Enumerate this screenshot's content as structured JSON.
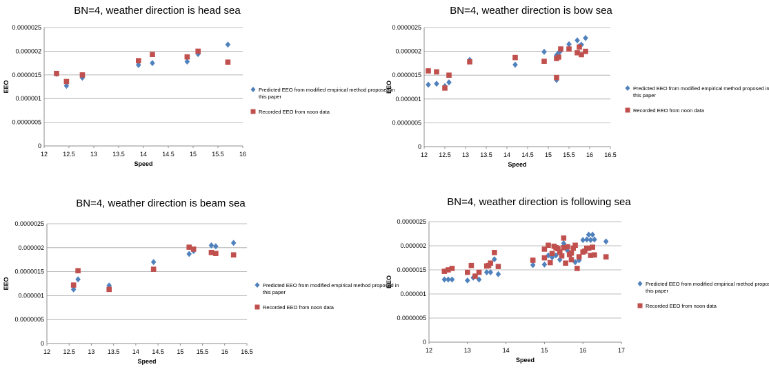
{
  "chart_data": [
    {
      "type": "scatter",
      "title": "BN=4, weather direction is head sea",
      "xlabel": "Speed",
      "ylabel": "EEO",
      "xlim": [
        12,
        16
      ],
      "xticks": [
        "12",
        "12.5",
        "13",
        "13.5",
        "14",
        "14.5",
        "15",
        "15.5",
        "16"
      ],
      "ylim": [
        0,
        2.5e-06
      ],
      "yticks": [
        "0",
        "0.0000005",
        "0.000001",
        "0.0000015",
        "0.000002",
        "0.0000025"
      ],
      "grid": "horizontal",
      "legend_position": "right",
      "series": [
        {
          "name": "Predicted EEO from modified empirical method proposed in this paper",
          "marker": "diamond",
          "color": "#4f81bd",
          "x": [
            12.25,
            12.45,
            12.77,
            13.9,
            14.18,
            14.88,
            15.1,
            15.7
          ],
          "y": [
            1.52e-06,
            1.27e-06,
            1.44e-06,
            1.71e-06,
            1.75e-06,
            1.78e-06,
            1.94e-06,
            2.14e-06
          ]
        },
        {
          "name": "Recorded EEO from noon data",
          "marker": "square",
          "color": "#c0504d",
          "x": [
            12.25,
            12.45,
            12.77,
            13.9,
            14.18,
            14.88,
            15.1,
            15.7
          ],
          "y": [
            1.53e-06,
            1.36e-06,
            1.5e-06,
            1.8e-06,
            1.93e-06,
            1.88e-06,
            2e-06,
            1.77e-06
          ]
        }
      ]
    },
    {
      "type": "scatter",
      "title": "BN=4, weather direction is bow sea",
      "xlabel": "Speed",
      "ylabel": "EEO",
      "xlim": [
        12,
        16.5
      ],
      "xticks": [
        "12",
        "12.5",
        "13",
        "13.5",
        "14",
        "14.5",
        "15",
        "15.5",
        "16",
        "16.5"
      ],
      "ylim": [
        0,
        2.5e-06
      ],
      "yticks": [
        "0",
        "0.0000005",
        "0.000001",
        "0.0000015",
        "0.000002",
        "0.0000025"
      ],
      "grid": "horizontal",
      "legend_position": "right",
      "series": [
        {
          "name": "Predicted EEO from modified empirical method proposed in this paper",
          "marker": "diamond",
          "color": "#4f81bd",
          "x": [
            12.1,
            12.3,
            12.5,
            12.6,
            13.1,
            14.2,
            14.9,
            15.2,
            15.2,
            15.25,
            15.3,
            15.5,
            15.7,
            15.75,
            15.8,
            15.9
          ],
          "y": [
            1.3e-06,
            1.32e-06,
            1.27e-06,
            1.35e-06,
            1.82e-06,
            1.72e-06,
            1.99e-06,
            1.4e-06,
            1.92e-06,
            1.97e-06,
            2.01e-06,
            2.15e-06,
            2.23e-06,
            2.11e-06,
            2.14e-06,
            2.28e-06
          ]
        },
        {
          "name": "Recorded EEO from noon data",
          "marker": "square",
          "color": "#c0504d",
          "x": [
            12.1,
            12.3,
            12.5,
            12.6,
            13.1,
            14.2,
            14.9,
            15.2,
            15.2,
            15.25,
            15.3,
            15.5,
            15.7,
            15.75,
            15.8,
            15.9
          ],
          "y": [
            1.59e-06,
            1.57e-06,
            1.23e-06,
            1.5e-06,
            1.78e-06,
            1.87e-06,
            1.79e-06,
            1.45e-06,
            1.85e-06,
            1.88e-06,
            2.05e-06,
            2.05e-06,
            1.97e-06,
            2.09e-06,
            1.93e-06,
            2e-06
          ]
        }
      ]
    },
    {
      "type": "scatter",
      "title": "BN=4, weather direction is beam sea",
      "xlabel": "Speed",
      "ylabel": "EEO",
      "xlim": [
        12,
        16.5
      ],
      "xticks": [
        "12",
        "12.5",
        "13",
        "13.5",
        "14",
        "14.5",
        "15",
        "15.5",
        "16",
        "16.5"
      ],
      "ylim": [
        0,
        2.5e-06
      ],
      "yticks": [
        "0",
        "0.0000005",
        "0.000001",
        "0.0000015",
        "0.000002",
        "0.0000025"
      ],
      "grid": "horizontal",
      "legend_position": "right",
      "series": [
        {
          "name": "Predicted EEO from modified empirical method proposed in this paper",
          "marker": "diamond",
          "color": "#4f81bd",
          "x": [
            12.6,
            12.7,
            13.4,
            14.4,
            15.2,
            15.3,
            15.7,
            15.8,
            16.2
          ],
          "y": [
            1.13e-06,
            1.34e-06,
            1.21e-06,
            1.7e-06,
            1.87e-06,
            1.93e-06,
            2.05e-06,
            2.03e-06,
            2.1e-06
          ]
        },
        {
          "name": "Recorded EEO from noon data",
          "marker": "square",
          "color": "#c0504d",
          "x": [
            12.6,
            12.7,
            13.4,
            14.4,
            15.2,
            15.3,
            15.7,
            15.8,
            16.2
          ],
          "y": [
            1.22e-06,
            1.52e-06,
            1.13e-06,
            1.55e-06,
            2.01e-06,
            1.97e-06,
            1.9e-06,
            1.88e-06,
            1.85e-06
          ]
        }
      ]
    },
    {
      "type": "scatter",
      "title": "BN=4, weather direction is following sea",
      "xlabel": "Speed",
      "ylabel": "EEO",
      "xlim": [
        12,
        17
      ],
      "xticks": [
        "12",
        "13",
        "14",
        "15",
        "16",
        "17"
      ],
      "ylim": [
        0,
        2.5e-06
      ],
      "yticks": [
        "0",
        "0.0000005",
        "0.000001",
        "0.0000015",
        "0.000002",
        "0.0000025"
      ],
      "grid": "horizontal",
      "legend_position": "right",
      "series": [
        {
          "name": "Predicted EEO from modified empirical method proposed in this paper",
          "marker": "diamond",
          "color": "#4f81bd",
          "x": [
            12.4,
            12.5,
            12.6,
            13.0,
            13.15,
            13.3,
            13.5,
            13.6,
            13.7,
            13.8,
            14.7,
            15.0,
            15.1,
            15.2,
            15.3,
            15.4,
            15.5,
            15.6,
            15.7,
            15.8,
            15.9,
            16.0,
            16.05,
            16.1,
            16.15,
            16.2,
            16.25,
            16.3,
            16.6
          ],
          "y": [
            1.3e-06,
            1.3e-06,
            1.3e-06,
            1.28e-06,
            1.34e-06,
            1.3e-06,
            1.45e-06,
            1.45e-06,
            1.72e-06,
            1.41e-06,
            1.6e-06,
            1.61e-06,
            1.8e-06,
            1.76e-06,
            1.8e-06,
            1.71e-06,
            2.05e-06,
            1.9e-06,
            1.83e-06,
            1.66e-06,
            1.7e-06,
            2.12e-06,
            1.9e-06,
            2.13e-06,
            2.23e-06,
            2.12e-06,
            2.23e-06,
            2.13e-06,
            2.09e-06
          ]
        },
        {
          "name": "Recorded EEO from noon data",
          "marker": "square",
          "color": "#c0504d",
          "x": [
            12.4,
            12.5,
            12.6,
            13.0,
            13.1,
            13.2,
            13.3,
            13.5,
            13.55,
            13.6,
            13.7,
            13.8,
            14.7,
            15.0,
            15.0,
            15.1,
            15.15,
            15.2,
            15.25,
            15.3,
            15.35,
            15.4,
            15.45,
            15.5,
            15.5,
            15.55,
            15.6,
            15.65,
            15.7,
            15.7,
            15.75,
            15.8,
            15.85,
            15.9,
            16.0,
            16.05,
            16.1,
            16.15,
            16.2,
            16.25,
            16.3,
            16.6
          ],
          "y": [
            1.47e-06,
            1.5e-06,
            1.53e-06,
            1.45e-06,
            1.59e-06,
            1.37e-06,
            1.45e-06,
            1.58e-06,
            1.59e-06,
            1.64e-06,
            1.86e-06,
            1.57e-06,
            1.7e-06,
            1.93e-06,
            1.75e-06,
            2.01e-06,
            1.65e-06,
            1.84e-06,
            1.99e-06,
            1.96e-06,
            1.94e-06,
            1.87e-06,
            1.79e-06,
            2.16e-06,
            1.96e-06,
            1.64e-06,
            1.98e-06,
            1.82e-06,
            1.85e-06,
            1.71e-06,
            1.95e-06,
            2.01e-06,
            1.53e-06,
            1.77e-06,
            1.87e-06,
            1.89e-06,
            1.95e-06,
            1.95e-06,
            1.8e-06,
            1.97e-06,
            1.81e-06,
            1.77e-06
          ]
        }
      ]
    }
  ]
}
